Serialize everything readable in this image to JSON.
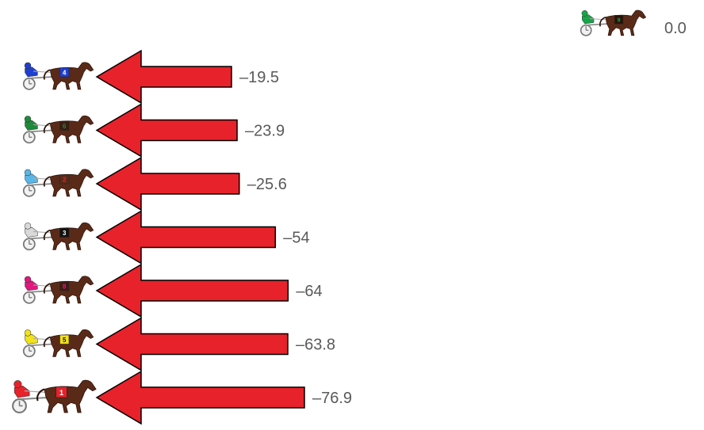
{
  "chart_data": {
    "type": "bar",
    "orientation": "horizontal",
    "title": "",
    "xlabel": "",
    "ylabel": "",
    "grid": false,
    "legend": "none",
    "bar_shape": "left-pointing-arrow",
    "bar_color": "#e8222a",
    "bar_outline": "#000000",
    "xlim": [
      -76.9,
      0
    ],
    "leader": {
      "value": 0.0,
      "label": "0.0",
      "number": "9",
      "silk_color": "#1aa34a",
      "number_color": "#1aa34a"
    },
    "rows": [
      {
        "number": "4",
        "value": -19.5,
        "label": "–19.5",
        "silk_color": "#1f3fd0",
        "number_color": "#ffffff",
        "number_bg": "#1f3fd0"
      },
      {
        "number": "6",
        "value": -23.9,
        "label": "–23.9",
        "silk_color": "#1e8a3a",
        "number_color": "#1e8a3a",
        "number_bg": "#3a1d12"
      },
      {
        "number": "2",
        "value": -25.6,
        "label": "–25.6",
        "silk_color": "#59b7e8",
        "number_color": "#e8222a",
        "number_bg": "#5a2a18"
      },
      {
        "number": "3",
        "value": -54,
        "label": "–54",
        "silk_color": "#d9d9d9",
        "number_color": "#ffffff",
        "number_bg": "#111111"
      },
      {
        "number": "8",
        "value": -64,
        "label": "–64",
        "silk_color": "#e0177f",
        "number_color": "#e0177f",
        "number_bg": "#3a1d12"
      },
      {
        "number": "5",
        "value": -63.8,
        "label": "–63.8",
        "silk_color": "#f2e21a",
        "number_color": "#111111",
        "number_bg": "#f2e21a"
      },
      {
        "number": "1",
        "value": -76.9,
        "label": "–76.9",
        "silk_color": "#e8222a",
        "number_color": "#ffffff",
        "number_bg": "#e8222a"
      }
    ]
  }
}
